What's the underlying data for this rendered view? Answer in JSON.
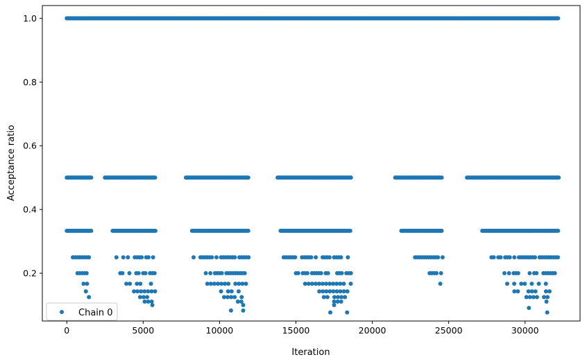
{
  "chart_data": {
    "type": "scatter",
    "title": "",
    "xlabel": "Iteration",
    "ylabel": "Acceptance ratio",
    "xlim": [
      -1600,
      33600
    ],
    "ylim": [
      0.05,
      1.04
    ],
    "x_ticks": [
      0,
      5000,
      10000,
      15000,
      20000,
      25000,
      30000
    ],
    "x_tick_labels": [
      "0",
      "5000",
      "10000",
      "15000",
      "20000",
      "25000",
      "30000"
    ],
    "y_ticks": [
      0.2,
      0.4,
      0.6,
      0.8,
      1.0
    ],
    "y_tick_labels": [
      "0.2",
      "0.4",
      "0.6",
      "0.8",
      "1.0"
    ],
    "grid": false,
    "legend": {
      "position": "lower-left",
      "entries": [
        "Chain 0"
      ]
    },
    "series": [
      {
        "name": "Chain 0",
        "color": "#1f77b4",
        "marker": "circle",
        "description_levels": {
          "y_1.0": [
            [
              0,
              32200
            ]
          ],
          "y_0.5": [
            [
              0,
              1600
            ],
            [
              2500,
              5800
            ],
            [
              7800,
              11900
            ],
            [
              13800,
              18600
            ],
            [
              21500,
              24600
            ],
            [
              26200,
              32200
            ]
          ],
          "y_0.333": [
            [
              0,
              1600
            ],
            [
              3000,
              5800
            ],
            [
              8200,
              11900
            ],
            [
              14000,
              18600
            ],
            [
              21900,
              24600
            ],
            [
              27200,
              32200
            ]
          ],
          "y_0.25": [
            [
              400,
              1500
            ],
            [
              3100,
              5800
            ],
            [
              8300,
              11900
            ],
            [
              14200,
              18600
            ],
            [
              22800,
              24600
            ],
            [
              27800,
              32200
            ]
          ],
          "y_0.2": [
            [
              700,
              1400
            ],
            [
              3500,
              5800
            ],
            [
              9100,
              11900
            ],
            [
              15000,
              18600
            ],
            [
              23300,
              24600
            ],
            [
              28500,
              32200
            ]
          ],
          "y_0.167": [
            [
              1100,
              1400
            ],
            [
              3900,
              5800
            ],
            [
              9200,
              11900
            ],
            [
              15600,
              18600
            ],
            [
              24400,
              24500
            ],
            [
              28600,
              31600
            ]
          ],
          "y_0.143": [
            [
              1200,
              1300
            ],
            [
              4400,
              5800
            ],
            [
              10100,
              11700
            ],
            [
              16300,
              18500
            ],
            [
              29300,
              31700
            ]
          ],
          "y_0.125": [
            [
              1400,
              1500
            ],
            [
              4800,
              5800
            ],
            [
              10300,
              11600
            ],
            [
              16600,
              18400
            ],
            [
              29400,
              31500
            ]
          ],
          "y_0.111": [
            [
              5100,
              5700
            ],
            [
              11200,
              11500
            ],
            [
              17500,
              18100
            ],
            [
              31300,
              31500
            ]
          ],
          "y_0.1": [
            [
              5500,
              5700
            ],
            [
              11500,
              11600
            ],
            [
              17500,
              17800
            ]
          ],
          "y_0.091": [
            [
              30200,
              30300
            ]
          ],
          "y_0.083": [
            [
              10700,
              10800
            ],
            [
              11500,
              11600
            ]
          ],
          "y_0.077": [
            [
              17200,
              17300
            ],
            [
              18300,
              18400
            ],
            [
              31400,
              31500
            ]
          ]
        }
      }
    ]
  }
}
